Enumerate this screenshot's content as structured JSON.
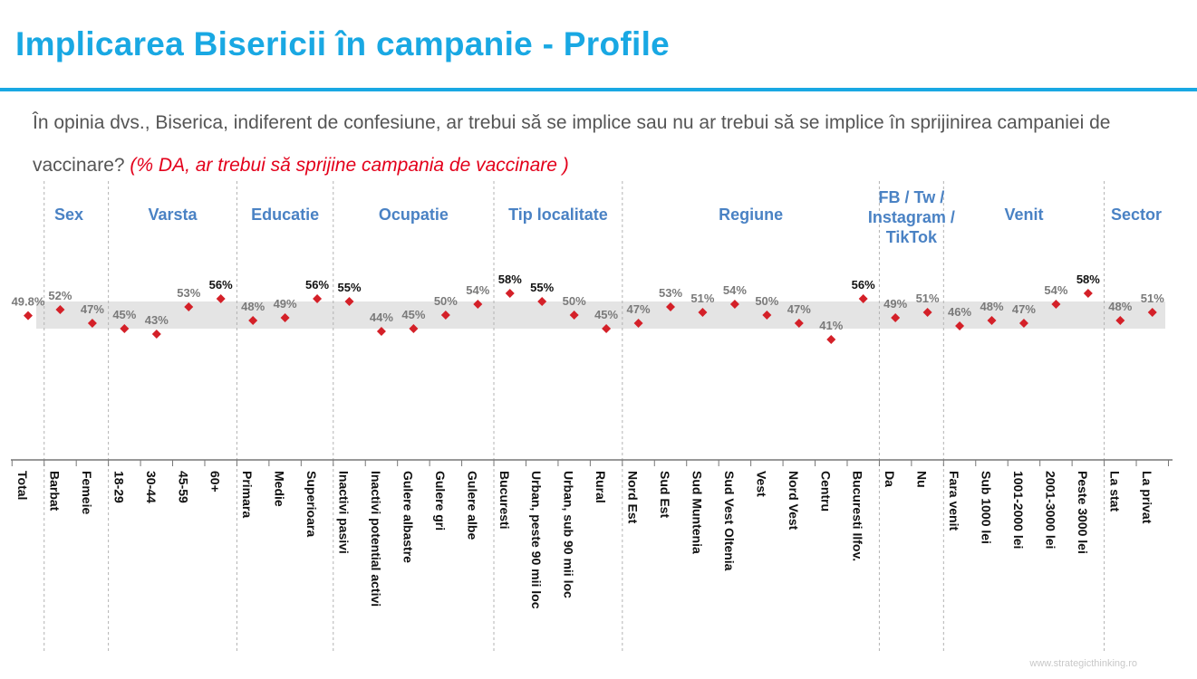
{
  "title": "Implicarea Bisericii în campanie - Profile",
  "question": {
    "text": "În opinia dvs., Biserica, indiferent de confesiune, ar trebui să se implice sau nu ar trebui să se implice în sprijinirea campaniei de vaccinare?",
    "note": "(% DA, ar trebui să sprijine campania de vaccinare )"
  },
  "watermark": "www.strategicthinking.ro",
  "colors": {
    "title": "#19a8e3",
    "group_label": "#4a82c4",
    "marker": "#d42028",
    "band": "#e4e4e4"
  },
  "chart_data": {
    "type": "scatter",
    "y_unit": "%",
    "ylim": [
      0,
      100
    ],
    "band": [
      45,
      55
    ],
    "groups": [
      {
        "label": "Sex",
        "categories": [
          1,
          2
        ]
      },
      {
        "label": "Varsta",
        "categories": [
          3,
          4,
          5,
          6
        ]
      },
      {
        "label": "Educatie",
        "categories": [
          7,
          8,
          9
        ]
      },
      {
        "label": "Ocupatie",
        "categories": [
          10,
          11,
          12,
          13,
          14
        ]
      },
      {
        "label": "Tip localitate",
        "categories": [
          15,
          16,
          17,
          18
        ]
      },
      {
        "label": "Regiune",
        "categories": [
          19,
          20,
          21,
          22,
          23,
          24,
          25,
          26
        ]
      },
      {
        "label": "FB / Tw / Instagram / TikTok",
        "categories": [
          27,
          28
        ]
      },
      {
        "label": "Venit",
        "categories": [
          29,
          30,
          31,
          32,
          33
        ]
      },
      {
        "label": "Sector",
        "categories": [
          34,
          35
        ]
      }
    ],
    "categories": [
      "Total",
      "Barbat",
      "Femeie",
      "18-29",
      "30-44",
      "45-59",
      "60+",
      "Primara",
      "Medie",
      "Superioara",
      "Inactivi pasivi",
      "Inactivi potential activi",
      "Gulere albastre",
      "Gulere gri",
      "Gulere albe",
      "Bucuresti",
      "Urban, peste 90 mii loc",
      "Urban, sub 90 mii loc",
      "Rural",
      "Nord Est",
      "Sud Est",
      "Sud Muntenia",
      "Sud Vest Oltenia",
      "Vest",
      "Nord Vest",
      "Centru",
      "Bucuresti Ilfov.",
      "Da",
      "Nu",
      "Fara venit",
      "Sub 1000 lei",
      "1001-2000 lei",
      "2001-3000 lei",
      "Peste 3000 lei",
      "La stat",
      "La privat"
    ],
    "values": [
      49.8,
      52,
      47,
      45,
      43,
      53,
      56,
      48,
      49,
      56,
      55,
      44,
      45,
      50,
      54,
      58,
      55,
      50,
      45,
      47,
      53,
      51,
      54,
      50,
      47,
      41,
      56,
      49,
      51,
      46,
      48,
      47,
      54,
      58,
      48,
      51
    ],
    "value_labels": [
      "49.8%",
      "52%",
      "47%",
      "45%",
      "43%",
      "53%",
      "56%",
      "48%",
      "49%",
      "56%",
      "55%",
      "44%",
      "45%",
      "50%",
      "54%",
      "58%",
      "55%",
      "50%",
      "45%",
      "47%",
      "53%",
      "51%",
      "54%",
      "50%",
      "47%",
      "41%",
      "56%",
      "49%",
      "51%",
      "46%",
      "48%",
      "47%",
      "54%",
      "58%",
      "48%",
      "51%"
    ]
  }
}
